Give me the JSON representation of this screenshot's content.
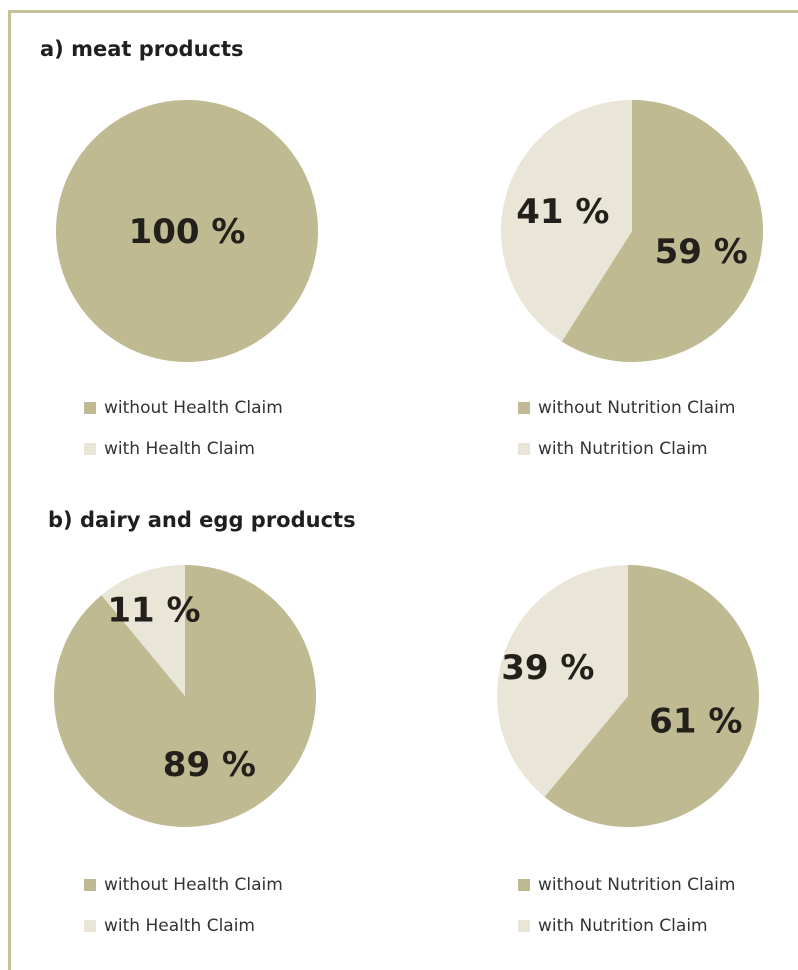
{
  "colors": {
    "without": "#bfba91",
    "with": "#e9e6d8"
  },
  "sections": [
    {
      "title": "a) meat products"
    },
    {
      "title": "b) dairy and egg products"
    }
  ],
  "chart_data": [
    {
      "type": "pie",
      "group": "a) meat products",
      "labels": [
        "without Health Claim",
        "with Health Claim"
      ],
      "values": [
        100,
        0
      ],
      "value_labels": [
        "100 %",
        ""
      ]
    },
    {
      "type": "pie",
      "group": "a) meat products",
      "labels": [
        "without Nutrition Claim",
        "with Nutrition Claim"
      ],
      "values": [
        59,
        41
      ],
      "value_labels": [
        "59 %",
        "41 %"
      ]
    },
    {
      "type": "pie",
      "group": "b) dairy and egg products",
      "labels": [
        "without Health Claim",
        "with Health Claim"
      ],
      "values": [
        89,
        11
      ],
      "value_labels": [
        "89 %",
        "11 %"
      ]
    },
    {
      "type": "pie",
      "group": "b) dairy and egg products",
      "labels": [
        "without Nutrition Claim",
        "with Nutrition Claim"
      ],
      "values": [
        61,
        39
      ],
      "value_labels": [
        "61 %",
        "39 %"
      ]
    }
  ]
}
